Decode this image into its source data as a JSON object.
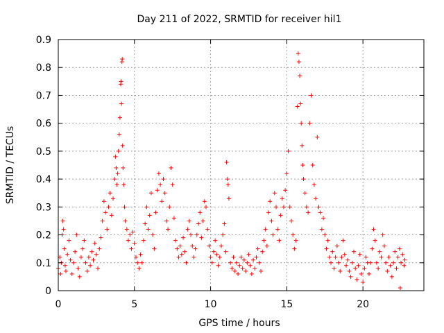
{
  "chart_data": {
    "type": "scatter",
    "title": "Day 211 of 2022, SRMTID for receiver hil1",
    "xlabel": "GPS time / hours",
    "ylabel": "SRMTID / TECUs",
    "xlim": [
      0,
      24
    ],
    "ylim": [
      0,
      0.9
    ],
    "xticks": [
      0,
      5,
      10,
      15,
      20
    ],
    "xtick_labels": [
      "0",
      "5",
      "10",
      "15",
      "20"
    ],
    "yticks": [
      0,
      0.1,
      0.2,
      0.3,
      0.4,
      0.5,
      0.6,
      0.7,
      0.8,
      0.9
    ],
    "ytick_labels": [
      "0",
      "0.1",
      "0.2",
      "0.3",
      "0.4",
      "0.5",
      "0.6",
      "0.7",
      "0.8",
      "0.9"
    ],
    "grid": true,
    "marker": "+",
    "color": "#ff0000",
    "series": [
      {
        "name": "SRMTID",
        "points": [
          [
            0.0,
            0.08
          ],
          [
            0.1,
            0.12
          ],
          [
            0.15,
            0.06
          ],
          [
            0.2,
            0.1
          ],
          [
            0.25,
            0.2
          ],
          [
            0.3,
            0.25
          ],
          [
            0.35,
            0.22
          ],
          [
            0.4,
            0.15
          ],
          [
            0.45,
            0.09
          ],
          [
            0.5,
            0.07
          ],
          [
            0.6,
            0.13
          ],
          [
            0.7,
            0.18
          ],
          [
            0.8,
            0.11
          ],
          [
            0.9,
            0.06
          ],
          [
            1.0,
            0.1
          ],
          [
            1.1,
            0.14
          ],
          [
            1.2,
            0.2
          ],
          [
            1.3,
            0.08
          ],
          [
            1.4,
            0.05
          ],
          [
            1.5,
            0.12
          ],
          [
            1.6,
            0.15
          ],
          [
            1.7,
            0.18
          ],
          [
            1.8,
            0.1
          ],
          [
            1.9,
            0.07
          ],
          [
            2.0,
            0.12
          ],
          [
            2.1,
            0.09
          ],
          [
            2.2,
            0.14
          ],
          [
            2.3,
            0.11
          ],
          [
            2.4,
            0.17
          ],
          [
            2.5,
            0.13
          ],
          [
            2.6,
            0.08
          ],
          [
            2.7,
            0.15
          ],
          [
            2.8,
            0.19
          ],
          [
            2.9,
            0.25
          ],
          [
            3.0,
            0.32
          ],
          [
            3.1,
            0.28
          ],
          [
            3.2,
            0.22
          ],
          [
            3.3,
            0.3
          ],
          [
            3.4,
            0.35
          ],
          [
            3.5,
            0.27
          ],
          [
            3.6,
            0.33
          ],
          [
            3.7,
            0.4
          ],
          [
            3.75,
            0.48
          ],
          [
            3.8,
            0.44
          ],
          [
            3.85,
            0.38
          ],
          [
            3.9,
            0.42
          ],
          [
            3.95,
            0.5
          ],
          [
            4.0,
            0.56
          ],
          [
            4.05,
            0.62
          ],
          [
            4.1,
            0.74
          ],
          [
            4.12,
            0.75
          ],
          [
            4.15,
            0.67
          ],
          [
            4.18,
            0.82
          ],
          [
            4.2,
            0.83
          ],
          [
            4.22,
            0.52
          ],
          [
            4.25,
            0.44
          ],
          [
            4.3,
            0.38
          ],
          [
            4.35,
            0.3
          ],
          [
            4.4,
            0.25
          ],
          [
            4.5,
            0.22
          ],
          [
            4.6,
            0.18
          ],
          [
            4.7,
            0.2
          ],
          [
            4.8,
            0.15
          ],
          [
            4.9,
            0.21
          ],
          [
            5.0,
            0.17
          ],
          [
            5.1,
            0.12
          ],
          [
            5.2,
            0.1
          ],
          [
            5.3,
            0.08
          ],
          [
            5.4,
            0.13
          ],
          [
            5.5,
            0.1
          ],
          [
            5.6,
            0.18
          ],
          [
            5.7,
            0.24
          ],
          [
            5.8,
            0.3
          ],
          [
            5.9,
            0.22
          ],
          [
            6.0,
            0.27
          ],
          [
            6.1,
            0.35
          ],
          [
            6.2,
            0.2
          ],
          [
            6.3,
            0.15
          ],
          [
            6.4,
            0.28
          ],
          [
            6.5,
            0.36
          ],
          [
            6.6,
            0.42
          ],
          [
            6.7,
            0.38
          ],
          [
            6.8,
            0.32
          ],
          [
            6.9,
            0.4
          ],
          [
            7.0,
            0.35
          ],
          [
            7.1,
            0.25
          ],
          [
            7.2,
            0.22
          ],
          [
            7.3,
            0.3
          ],
          [
            7.4,
            0.44
          ],
          [
            7.5,
            0.38
          ],
          [
            7.6,
            0.26
          ],
          [
            7.7,
            0.18
          ],
          [
            7.8,
            0.15
          ],
          [
            7.9,
            0.12
          ],
          [
            8.0,
            0.16
          ],
          [
            8.1,
            0.13
          ],
          [
            8.2,
            0.19
          ],
          [
            8.3,
            0.14
          ],
          [
            8.4,
            0.1
          ],
          [
            8.5,
            0.22
          ],
          [
            8.6,
            0.25
          ],
          [
            8.7,
            0.2
          ],
          [
            8.8,
            0.16
          ],
          [
            8.9,
            0.12
          ],
          [
            9.0,
            0.15
          ],
          [
            9.1,
            0.2
          ],
          [
            9.2,
            0.24
          ],
          [
            9.3,
            0.28
          ],
          [
            9.4,
            0.19
          ],
          [
            9.5,
            0.25
          ],
          [
            9.6,
            0.32
          ],
          [
            9.7,
            0.3
          ],
          [
            9.8,
            0.22
          ],
          [
            9.9,
            0.16
          ],
          [
            10.0,
            0.12
          ],
          [
            10.1,
            0.1
          ],
          [
            10.2,
            0.14
          ],
          [
            10.3,
            0.18
          ],
          [
            10.4,
            0.13
          ],
          [
            10.5,
            0.09
          ],
          [
            10.6,
            0.12
          ],
          [
            10.7,
            0.16
          ],
          [
            10.8,
            0.2
          ],
          [
            10.9,
            0.24
          ],
          [
            11.0,
            0.14
          ],
          [
            11.05,
            0.46
          ],
          [
            11.1,
            0.4
          ],
          [
            11.15,
            0.38
          ],
          [
            11.2,
            0.33
          ],
          [
            11.3,
            0.1
          ],
          [
            11.4,
            0.08
          ],
          [
            11.5,
            0.12
          ],
          [
            11.6,
            0.07
          ],
          [
            11.7,
            0.1
          ],
          [
            11.8,
            0.06
          ],
          [
            11.9,
            0.09
          ],
          [
            12.0,
            0.12
          ],
          [
            12.1,
            0.08
          ],
          [
            12.2,
            0.11
          ],
          [
            12.3,
            0.07
          ],
          [
            12.4,
            0.1
          ],
          [
            12.5,
            0.13
          ],
          [
            12.6,
            0.09
          ],
          [
            12.7,
            0.06
          ],
          [
            12.8,
            0.11
          ],
          [
            12.9,
            0.08
          ],
          [
            13.0,
            0.12
          ],
          [
            13.1,
            0.15
          ],
          [
            13.2,
            0.1
          ],
          [
            13.3,
            0.07
          ],
          [
            13.4,
            0.14
          ],
          [
            13.5,
            0.18
          ],
          [
            13.6,
            0.22
          ],
          [
            13.7,
            0.16
          ],
          [
            13.8,
            0.28
          ],
          [
            13.9,
            0.32
          ],
          [
            14.0,
            0.25
          ],
          [
            14.1,
            0.2
          ],
          [
            14.2,
            0.35
          ],
          [
            14.3,
            0.3
          ],
          [
            14.4,
            0.22
          ],
          [
            14.5,
            0.18
          ],
          [
            14.6,
            0.27
          ],
          [
            14.7,
            0.33
          ],
          [
            14.8,
            0.3
          ],
          [
            14.9,
            0.36
          ],
          [
            15.0,
            0.42
          ],
          [
            15.1,
            0.5
          ],
          [
            15.2,
            0.3
          ],
          [
            15.3,
            0.25
          ],
          [
            15.4,
            0.2
          ],
          [
            15.5,
            0.15
          ],
          [
            15.6,
            0.18
          ],
          [
            15.7,
            0.66
          ],
          [
            15.75,
            0.85
          ],
          [
            15.8,
            0.82
          ],
          [
            15.85,
            0.77
          ],
          [
            15.9,
            0.67
          ],
          [
            15.95,
            0.6
          ],
          [
            16.0,
            0.52
          ],
          [
            16.05,
            0.45
          ],
          [
            16.1,
            0.4
          ],
          [
            16.2,
            0.35
          ],
          [
            16.3,
            0.3
          ],
          [
            16.4,
            0.28
          ],
          [
            16.5,
            0.6
          ],
          [
            16.6,
            0.7
          ],
          [
            16.7,
            0.45
          ],
          [
            16.8,
            0.38
          ],
          [
            16.9,
            0.33
          ],
          [
            17.0,
            0.55
          ],
          [
            17.1,
            0.3
          ],
          [
            17.2,
            0.28
          ],
          [
            17.3,
            0.22
          ],
          [
            17.4,
            0.26
          ],
          [
            17.5,
            0.2
          ],
          [
            17.6,
            0.15
          ],
          [
            17.7,
            0.18
          ],
          [
            17.8,
            0.12
          ],
          [
            17.9,
            0.1
          ],
          [
            18.0,
            0.14
          ],
          [
            18.1,
            0.08
          ],
          [
            18.2,
            0.12
          ],
          [
            18.3,
            0.16
          ],
          [
            18.4,
            0.1
          ],
          [
            18.5,
            0.07
          ],
          [
            18.6,
            0.12
          ],
          [
            18.7,
            0.18
          ],
          [
            18.8,
            0.13
          ],
          [
            18.9,
            0.09
          ],
          [
            19.0,
            0.11
          ],
          [
            19.1,
            0.07
          ],
          [
            19.2,
            0.05
          ],
          [
            19.3,
            0.1
          ],
          [
            19.4,
            0.14
          ],
          [
            19.5,
            0.08
          ],
          [
            19.6,
            0.04
          ],
          [
            19.7,
            0.09
          ],
          [
            19.8,
            0.13
          ],
          [
            19.9,
            0.06
          ],
          [
            20.0,
            0.03
          ],
          [
            20.1,
            0.08
          ],
          [
            20.2,
            0.12
          ],
          [
            20.3,
            0.1
          ],
          [
            20.4,
            0.06
          ],
          [
            20.5,
            0.1
          ],
          [
            20.6,
            0.15
          ],
          [
            20.7,
            0.22
          ],
          [
            20.8,
            0.18
          ],
          [
            20.9,
            0.1
          ],
          [
            21.0,
            0.08
          ],
          [
            21.1,
            0.14
          ],
          [
            21.2,
            0.12
          ],
          [
            21.3,
            0.2
          ],
          [
            21.4,
            0.16
          ],
          [
            21.5,
            0.1
          ],
          [
            21.6,
            0.07
          ],
          [
            21.7,
            0.12
          ],
          [
            21.8,
            0.09
          ],
          [
            21.9,
            0.05
          ],
          [
            22.0,
            0.1
          ],
          [
            22.1,
            0.14
          ],
          [
            22.2,
            0.08
          ],
          [
            22.3,
            0.12
          ],
          [
            22.4,
            0.15
          ],
          [
            22.45,
            0.01
          ],
          [
            22.5,
            0.1
          ],
          [
            22.6,
            0.13
          ],
          [
            22.7,
            0.09
          ],
          [
            22.75,
            0.11
          ]
        ]
      }
    ]
  }
}
